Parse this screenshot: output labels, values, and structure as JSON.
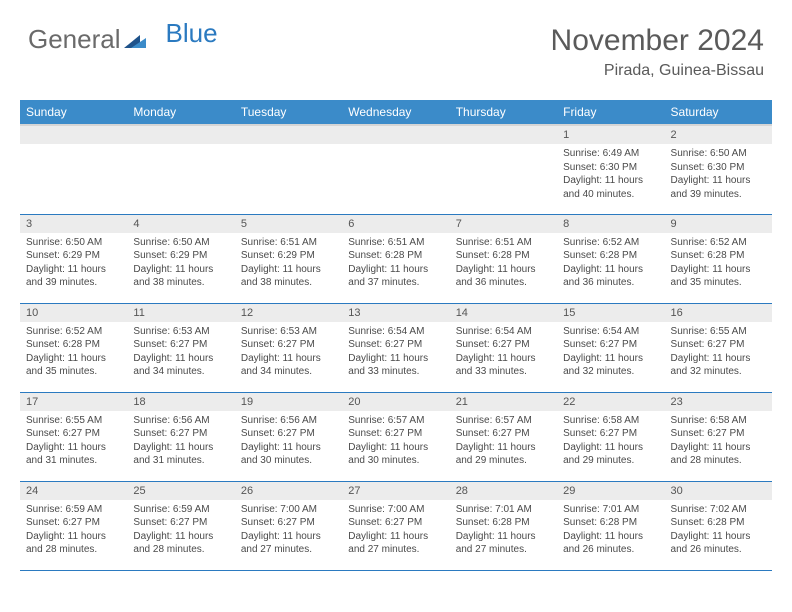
{
  "brand": {
    "part1": "General",
    "part2": "Blue"
  },
  "title": "November 2024",
  "location": "Pirada, Guinea-Bissau",
  "colors": {
    "header_bg": "#3b8bc9",
    "header_text": "#ffffff",
    "daynum_bg": "#ececec",
    "week_divider": "#2b7ac0",
    "logo_grey": "#6a6a6a",
    "logo_blue": "#2b7ac0"
  },
  "day_headers": [
    "Sunday",
    "Monday",
    "Tuesday",
    "Wednesday",
    "Thursday",
    "Friday",
    "Saturday"
  ],
  "weeks": [
    [
      {
        "n": "",
        "sr": "",
        "ss": "",
        "dl": ""
      },
      {
        "n": "",
        "sr": "",
        "ss": "",
        "dl": ""
      },
      {
        "n": "",
        "sr": "",
        "ss": "",
        "dl": ""
      },
      {
        "n": "",
        "sr": "",
        "ss": "",
        "dl": ""
      },
      {
        "n": "",
        "sr": "",
        "ss": "",
        "dl": ""
      },
      {
        "n": "1",
        "sr": "Sunrise: 6:49 AM",
        "ss": "Sunset: 6:30 PM",
        "dl": "Daylight: 11 hours and 40 minutes."
      },
      {
        "n": "2",
        "sr": "Sunrise: 6:50 AM",
        "ss": "Sunset: 6:30 PM",
        "dl": "Daylight: 11 hours and 39 minutes."
      }
    ],
    [
      {
        "n": "3",
        "sr": "Sunrise: 6:50 AM",
        "ss": "Sunset: 6:29 PM",
        "dl": "Daylight: 11 hours and 39 minutes."
      },
      {
        "n": "4",
        "sr": "Sunrise: 6:50 AM",
        "ss": "Sunset: 6:29 PM",
        "dl": "Daylight: 11 hours and 38 minutes."
      },
      {
        "n": "5",
        "sr": "Sunrise: 6:51 AM",
        "ss": "Sunset: 6:29 PM",
        "dl": "Daylight: 11 hours and 38 minutes."
      },
      {
        "n": "6",
        "sr": "Sunrise: 6:51 AM",
        "ss": "Sunset: 6:28 PM",
        "dl": "Daylight: 11 hours and 37 minutes."
      },
      {
        "n": "7",
        "sr": "Sunrise: 6:51 AM",
        "ss": "Sunset: 6:28 PM",
        "dl": "Daylight: 11 hours and 36 minutes."
      },
      {
        "n": "8",
        "sr": "Sunrise: 6:52 AM",
        "ss": "Sunset: 6:28 PM",
        "dl": "Daylight: 11 hours and 36 minutes."
      },
      {
        "n": "9",
        "sr": "Sunrise: 6:52 AM",
        "ss": "Sunset: 6:28 PM",
        "dl": "Daylight: 11 hours and 35 minutes."
      }
    ],
    [
      {
        "n": "10",
        "sr": "Sunrise: 6:52 AM",
        "ss": "Sunset: 6:28 PM",
        "dl": "Daylight: 11 hours and 35 minutes."
      },
      {
        "n": "11",
        "sr": "Sunrise: 6:53 AM",
        "ss": "Sunset: 6:27 PM",
        "dl": "Daylight: 11 hours and 34 minutes."
      },
      {
        "n": "12",
        "sr": "Sunrise: 6:53 AM",
        "ss": "Sunset: 6:27 PM",
        "dl": "Daylight: 11 hours and 34 minutes."
      },
      {
        "n": "13",
        "sr": "Sunrise: 6:54 AM",
        "ss": "Sunset: 6:27 PM",
        "dl": "Daylight: 11 hours and 33 minutes."
      },
      {
        "n": "14",
        "sr": "Sunrise: 6:54 AM",
        "ss": "Sunset: 6:27 PM",
        "dl": "Daylight: 11 hours and 33 minutes."
      },
      {
        "n": "15",
        "sr": "Sunrise: 6:54 AM",
        "ss": "Sunset: 6:27 PM",
        "dl": "Daylight: 11 hours and 32 minutes."
      },
      {
        "n": "16",
        "sr": "Sunrise: 6:55 AM",
        "ss": "Sunset: 6:27 PM",
        "dl": "Daylight: 11 hours and 32 minutes."
      }
    ],
    [
      {
        "n": "17",
        "sr": "Sunrise: 6:55 AM",
        "ss": "Sunset: 6:27 PM",
        "dl": "Daylight: 11 hours and 31 minutes."
      },
      {
        "n": "18",
        "sr": "Sunrise: 6:56 AM",
        "ss": "Sunset: 6:27 PM",
        "dl": "Daylight: 11 hours and 31 minutes."
      },
      {
        "n": "19",
        "sr": "Sunrise: 6:56 AM",
        "ss": "Sunset: 6:27 PM",
        "dl": "Daylight: 11 hours and 30 minutes."
      },
      {
        "n": "20",
        "sr": "Sunrise: 6:57 AM",
        "ss": "Sunset: 6:27 PM",
        "dl": "Daylight: 11 hours and 30 minutes."
      },
      {
        "n": "21",
        "sr": "Sunrise: 6:57 AM",
        "ss": "Sunset: 6:27 PM",
        "dl": "Daylight: 11 hours and 29 minutes."
      },
      {
        "n": "22",
        "sr": "Sunrise: 6:58 AM",
        "ss": "Sunset: 6:27 PM",
        "dl": "Daylight: 11 hours and 29 minutes."
      },
      {
        "n": "23",
        "sr": "Sunrise: 6:58 AM",
        "ss": "Sunset: 6:27 PM",
        "dl": "Daylight: 11 hours and 28 minutes."
      }
    ],
    [
      {
        "n": "24",
        "sr": "Sunrise: 6:59 AM",
        "ss": "Sunset: 6:27 PM",
        "dl": "Daylight: 11 hours and 28 minutes."
      },
      {
        "n": "25",
        "sr": "Sunrise: 6:59 AM",
        "ss": "Sunset: 6:27 PM",
        "dl": "Daylight: 11 hours and 28 minutes."
      },
      {
        "n": "26",
        "sr": "Sunrise: 7:00 AM",
        "ss": "Sunset: 6:27 PM",
        "dl": "Daylight: 11 hours and 27 minutes."
      },
      {
        "n": "27",
        "sr": "Sunrise: 7:00 AM",
        "ss": "Sunset: 6:27 PM",
        "dl": "Daylight: 11 hours and 27 minutes."
      },
      {
        "n": "28",
        "sr": "Sunrise: 7:01 AM",
        "ss": "Sunset: 6:28 PM",
        "dl": "Daylight: 11 hours and 27 minutes."
      },
      {
        "n": "29",
        "sr": "Sunrise: 7:01 AM",
        "ss": "Sunset: 6:28 PM",
        "dl": "Daylight: 11 hours and 26 minutes."
      },
      {
        "n": "30",
        "sr": "Sunrise: 7:02 AM",
        "ss": "Sunset: 6:28 PM",
        "dl": "Daylight: 11 hours and 26 minutes."
      }
    ]
  ]
}
